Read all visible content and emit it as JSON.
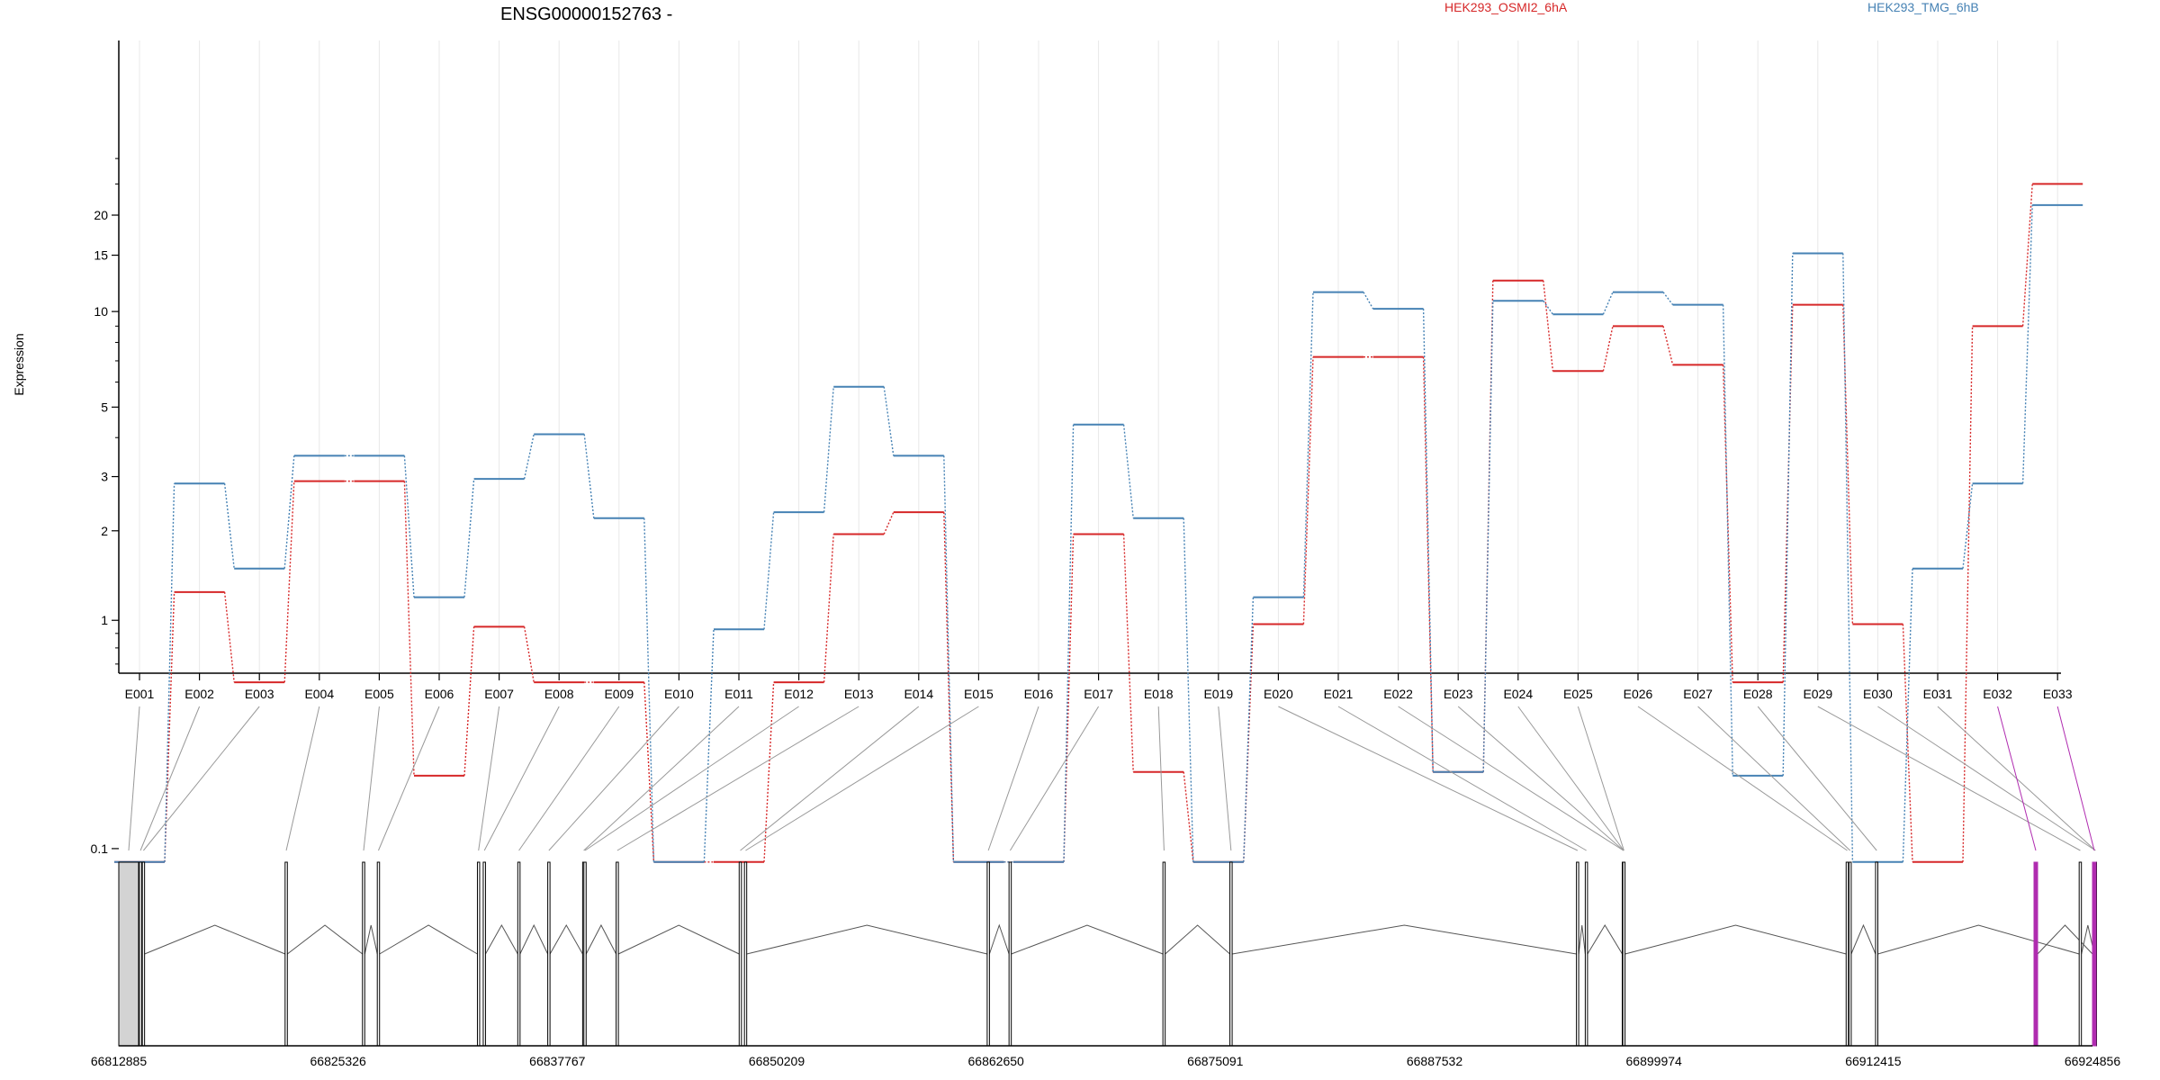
{
  "colors": {
    "series_a": "#d62728",
    "series_b": "#4682b4",
    "highlight": "#b02cb0",
    "exon_fill_first": "#d3d3d3",
    "intron": "#555555",
    "connector": "#999999"
  },
  "chart_data": {
    "type": "line",
    "title": "ENSG00000152763 -",
    "ylabel": "Expression",
    "y_scale": "log",
    "y_ticks": [
      "0.1",
      "1",
      "2",
      "3",
      "5",
      "10",
      "15",
      "20"
    ],
    "categories": [
      "E001",
      "E002",
      "E003",
      "E004",
      "E005",
      "E006",
      "E007",
      "E008",
      "E009",
      "E010",
      "E011",
      "E012",
      "E013",
      "E014",
      "E015",
      "E016",
      "E017",
      "E018",
      "E019",
      "E020",
      "E021",
      "E022",
      "E023",
      "E024",
      "E025",
      "E026",
      "E027",
      "E028",
      "E029",
      "E030",
      "E031",
      "E032",
      "E033"
    ],
    "series": [
      {
        "name": "HEK293_OSMI2_6hA",
        "values": [
          0.08,
          1.25,
          0.6,
          2.9,
          2.9,
          0.25,
          0.95,
          0.6,
          0.6,
          0.08,
          0.08,
          0.6,
          1.95,
          2.3,
          0.08,
          0.08,
          1.95,
          0.26,
          0.08,
          0.97,
          7.2,
          7.2,
          0.26,
          12.5,
          6.5,
          9.0,
          6.8,
          0.6,
          10.5,
          0.97,
          0.08,
          9.0,
          25.0
        ]
      },
      {
        "name": "HEK293_TMG_6hB",
        "values": [
          0.08,
          2.85,
          1.5,
          3.5,
          3.5,
          1.2,
          2.95,
          4.1,
          2.2,
          0.08,
          0.93,
          2.3,
          5.8,
          3.5,
          0.08,
          0.08,
          4.4,
          2.2,
          0.08,
          1.2,
          11.5,
          10.2,
          0.26,
          10.8,
          9.8,
          11.5,
          10.5,
          0.25,
          15.2,
          0.08,
          1.5,
          2.85,
          21.5
        ]
      }
    ],
    "gene_model": {
      "coordinate_ticks": [
        "66812885",
        "66825326",
        "66837767",
        "66850209",
        "66862650",
        "66875091",
        "66887532",
        "66899974",
        "66912415",
        "66924856"
      ],
      "start": 66812885,
      "end": 66924856,
      "exon_coordinates": [
        66812885,
        66814050,
        66814220,
        66822320,
        66826710,
        66827550,
        66833230,
        66833560,
        66835520,
        66837220,
        66839200,
        66839270,
        66841100,
        66848080,
        66848380,
        66862150,
        66863390,
        66872120,
        66875920,
        66895580,
        66896080,
        66898180,
        66898190,
        66898200,
        66898210,
        66910880,
        66911040,
        66912550,
        66924100,
        66925400,
        66928700,
        66929600,
        66929600
      ],
      "highlighted_exons": [
        "E032",
        "E033"
      ]
    }
  }
}
